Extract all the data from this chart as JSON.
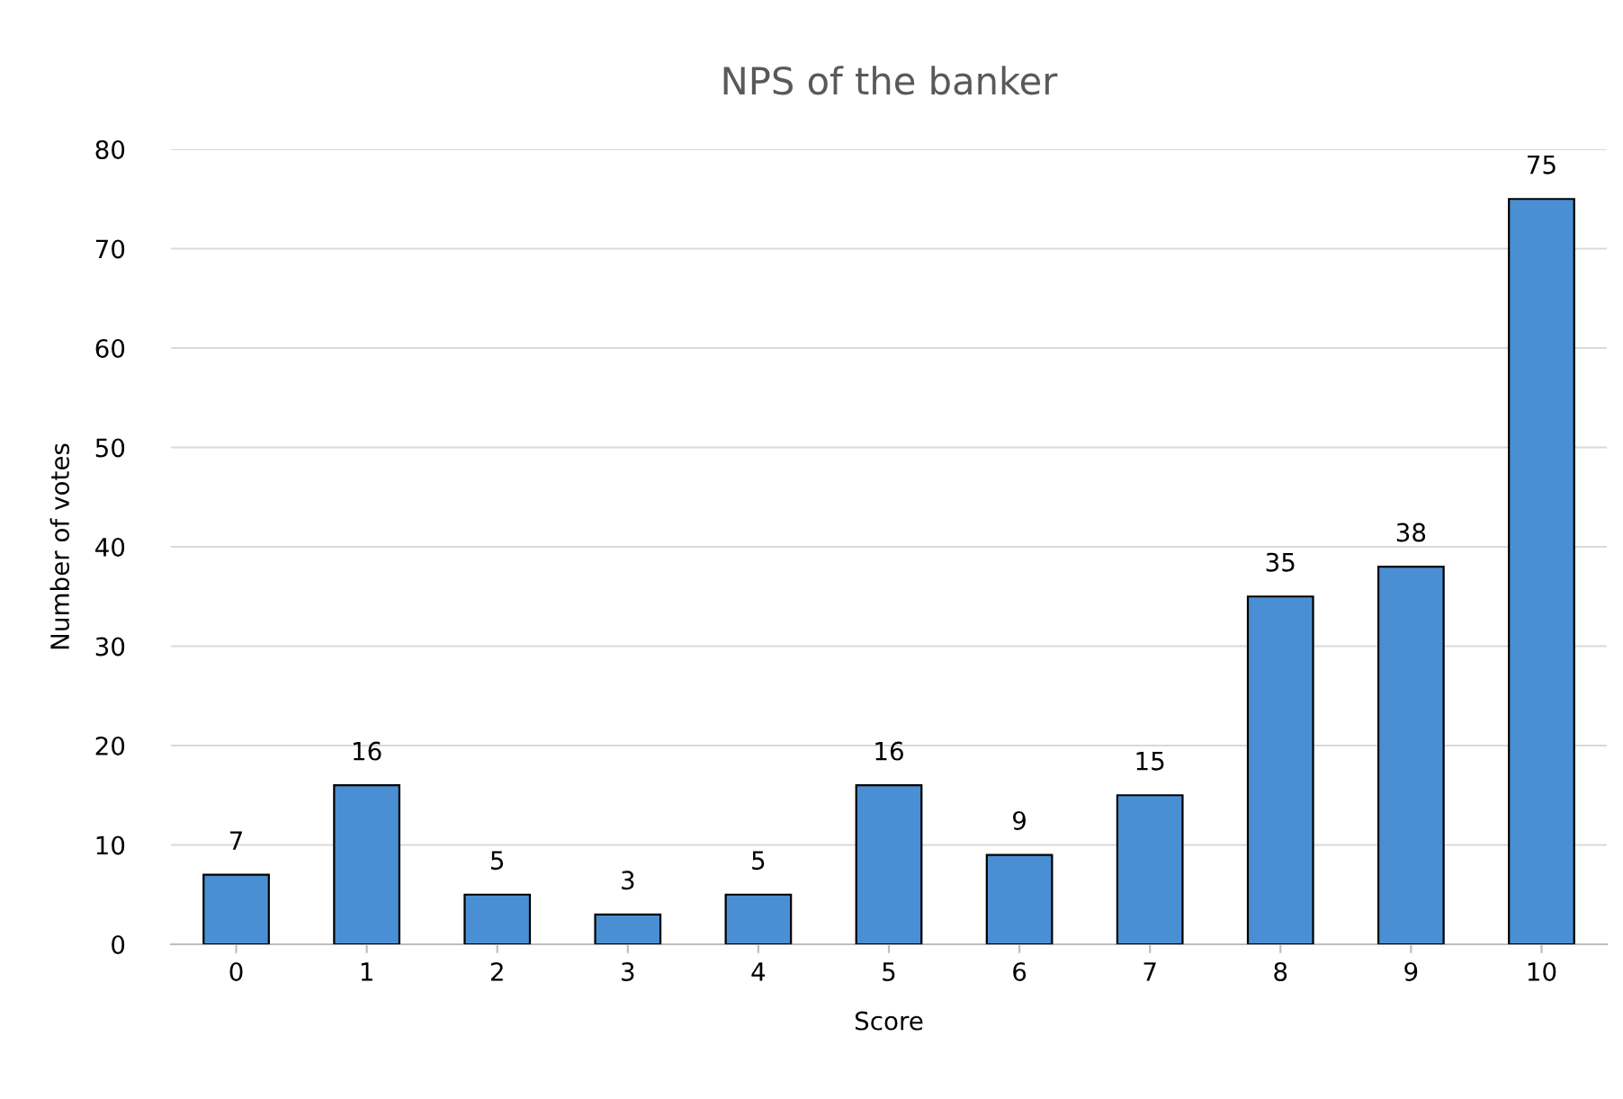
{
  "chart_data": {
    "type": "bar",
    "title": "NPS of the banker",
    "xlabel": "Score",
    "ylabel": "Number of votes",
    "categories": [
      "0",
      "1",
      "2",
      "3",
      "4",
      "5",
      "6",
      "7",
      "8",
      "9",
      "10"
    ],
    "values": [
      7,
      16,
      5,
      3,
      5,
      16,
      9,
      15,
      35,
      38,
      75
    ],
    "color": "#4a8fd4",
    "ylim": [
      0,
      80
    ],
    "yticks": [
      0,
      10,
      20,
      30,
      40,
      50,
      60,
      70,
      80
    ],
    "grid": "y",
    "data_labels": true
  }
}
